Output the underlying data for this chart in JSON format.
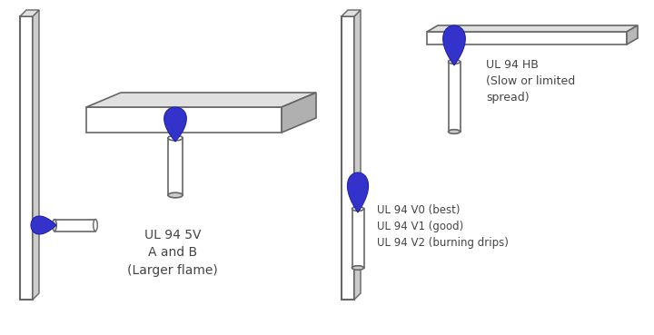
{
  "outline_color": "#666666",
  "flame_blue": "#3333cc",
  "text_color": "#444444",
  "label_5V": "UL 94 5V\nA and B\n(Larger flame)",
  "label_HB": "UL 94 HB\n(Slow or limited\nspread)",
  "label_V": "UL 94 V0 (best)\nUL 94 V1 (good)\nUL 94 V2 (burning drips)",
  "fig_w": 7.2,
  "fig_h": 3.69,
  "dpi": 100
}
